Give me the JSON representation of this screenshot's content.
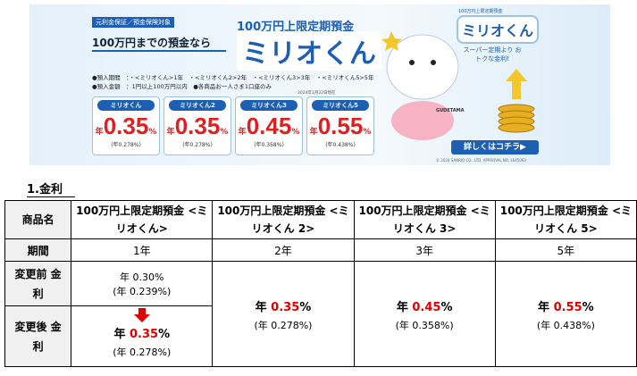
{
  "banner": {
    "badge": "元利金保証／預金保険対象",
    "lead": "100万円までの預金なら",
    "product_line": "100万円上限定期預金",
    "logo": "ミリオくん",
    "terms": [
      "●預入期間　：・<ミリオくん>1年　・<ミリオくん2>2年　・<ミリオくん3>3年　・<ミリオくん5>5年",
      "●預入金額　：1円以上100万円以内　●各商品お一人さま1口座のみ"
    ],
    "as_of": "2024年1月22日現在",
    "cards": [
      {
        "name": "ミリオくん",
        "prefix": "年",
        "rate": "0.35",
        "suffix": "%",
        "sub": "(年0.278%)"
      },
      {
        "name": "ミリオくん2",
        "prefix": "年",
        "rate": "0.35",
        "suffix": "%",
        "sub": "(年0.278%)"
      },
      {
        "name": "ミリオくん3",
        "prefix": "年",
        "rate": "0.45",
        "suffix": "%",
        "sub": "(年0.358%)"
      },
      {
        "name": "ミリオくん5",
        "prefix": "年",
        "rate": "0.55",
        "suffix": "%",
        "sub": "(年0.438%)"
      }
    ],
    "side_title": "100万円上限定期預金",
    "side_logo": "ミリオくん",
    "side_copy": "スーパー定期より おトクな金利!",
    "character": "GUDETAMA",
    "button": "詳しくはコチラ▶",
    "copyright": "© 2024 SANRIO CO., LTD. APPROVAL NO. L645063"
  },
  "section_title": "1.金利",
  "table": {
    "header": [
      "商品名",
      "100万円上限定期預金 <ミリオくん>",
      "100万円上限定期預金 <ミリオくん 2>",
      "100万円上限定期預金 <ミリオくん 3>",
      "100万円上限定期預金 <ミリオくん 5>"
    ],
    "period_label": "期間",
    "periods": [
      "1年",
      "2年",
      "3年",
      "5年"
    ],
    "before_label": "変更前 金利",
    "after_label": "変更後 金利",
    "before": {
      "text": "年 0.30%",
      "sub": "(年 0.239%)"
    },
    "after": [
      {
        "prefix": "年 ",
        "rate": "0.35",
        "suffix": "%",
        "sub": "(年 0.278%)"
      },
      {
        "prefix": "年 ",
        "rate": "0.35",
        "suffix": "%",
        "sub": "(年 0.278%)"
      },
      {
        "prefix": "年 ",
        "rate": "0.45",
        "suffix": "%",
        "sub": "(年 0.358%)"
      },
      {
        "prefix": "年 ",
        "rate": "0.55",
        "suffix": "%",
        "sub": "(年 0.438%)"
      }
    ]
  }
}
